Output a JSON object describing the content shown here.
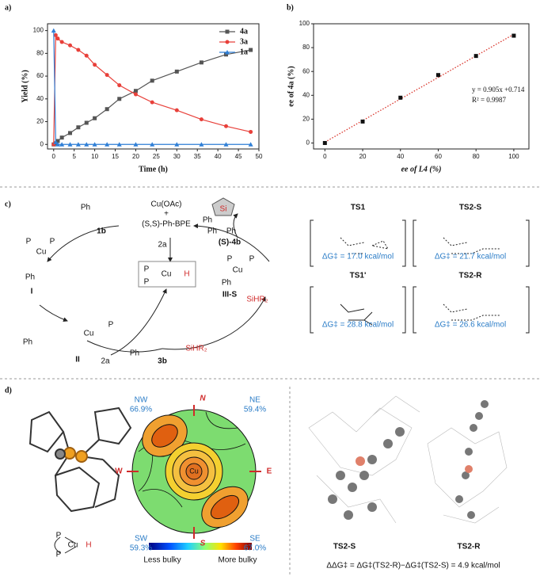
{
  "panels": [
    "a)",
    "b)",
    "c)",
    "d)"
  ],
  "chart_data": [
    {
      "type": "line",
      "x_label": "Time (h)",
      "y_label": "Yield (%)",
      "x": [
        0,
        0.5,
        1,
        2,
        4,
        6,
        8,
        10,
        13,
        16,
        20,
        24,
        30,
        36,
        42,
        48
      ],
      "series": [
        {
          "name": "4a",
          "color": "#555555",
          "marker": "square",
          "values": [
            0,
            1,
            3,
            6,
            10,
            15,
            19,
            23,
            31,
            40,
            47,
            56,
            64,
            72,
            79,
            83
          ]
        },
        {
          "name": "3a",
          "color": "#e8403a",
          "marker": "circle",
          "values": [
            0,
            96,
            93,
            90,
            87,
            83,
            78,
            70,
            61,
            52,
            44,
            37,
            30,
            22,
            16,
            11
          ]
        },
        {
          "name": "1a",
          "color": "#2f7fd6",
          "marker": "triangle",
          "values": [
            100,
            2,
            0,
            0,
            0,
            0,
            0,
            0,
            0,
            0,
            0,
            0,
            0,
            0,
            0,
            0
          ]
        }
      ],
      "xlim": [
        -1.5,
        50
      ],
      "ylim": [
        -4,
        106
      ],
      "xticks": [
        0,
        5,
        10,
        15,
        20,
        25,
        30,
        35,
        40,
        45,
        50
      ],
      "yticks": [
        0,
        20,
        40,
        60,
        80,
        100
      ],
      "legend": "upper right"
    },
    {
      "type": "scatter",
      "x_label": "ee of L4 (%)",
      "y_label": "ee of 4a (%)",
      "x": [
        0,
        20,
        40,
        60,
        80,
        100
      ],
      "values": [
        0,
        18,
        38,
        57,
        73,
        90
      ],
      "color": "#111111",
      "trendline": {
        "slope": 0.905,
        "intercept": 0.714,
        "color": "#d9342b"
      },
      "annotations": [
        "y = 0.905x +0.714",
        "R² = 0.9987"
      ],
      "xlim": [
        -6,
        108
      ],
      "ylim": [
        -5,
        100
      ],
      "xticks": [
        0,
        20,
        40,
        60,
        80,
        100
      ],
      "yticks": [
        0,
        20,
        40,
        60,
        80,
        100
      ]
    }
  ],
  "catalytic_cycle": {
    "labels": [
      "Cu(OAc)",
      "+",
      "(S,S)-Ph-BPE",
      "2a",
      "Ph",
      "1b",
      "I",
      "P",
      "P",
      "Cu",
      "Ph",
      "P",
      "Cu",
      "H",
      "P",
      "Ph",
      "P",
      "Cu",
      "II",
      "2a",
      "Ph",
      "3b",
      "SiHR₂",
      "III-S",
      "P",
      "Cu",
      "P",
      "Ph",
      "SiHR₂",
      "Ph",
      "Si",
      "Ph",
      "Ph",
      "(S)-4b"
    ]
  },
  "transition_states": [
    {
      "name": "TS1",
      "energy": "ΔG‡ = 17.0 kcal/mol"
    },
    {
      "name": "TS2-S",
      "energy": "ΔG‡ = 21.7 kcal/mol"
    },
    {
      "name": "TS1'",
      "energy": "ΔG‡ = 28.8 kcal/mol"
    },
    {
      "name": "TS2-R",
      "energy": "ΔG‡ = 26.6 kcal/mol"
    }
  ],
  "steric_map": {
    "quadrants": [
      {
        "name": "NW",
        "value": "66.9%"
      },
      {
        "name": "NE",
        "value": "59.4%"
      },
      {
        "name": "SW",
        "value": "59.3%"
      },
      {
        "name": "SE",
        "value": "67.0%"
      }
    ],
    "compass": [
      "N",
      "S",
      "W",
      "E"
    ],
    "center": "Cu",
    "scale": [
      "Less bulky",
      "More bulky"
    ]
  },
  "complex_labels": [
    "P",
    "P",
    "Cu",
    "H"
  ],
  "structures": [
    "TS2-S",
    "TS2-R"
  ],
  "energy_difference": "ΔΔG‡ = ΔG‡(TS2-R)−ΔG‡(TS2-S) = 4.9 kcal/mol"
}
